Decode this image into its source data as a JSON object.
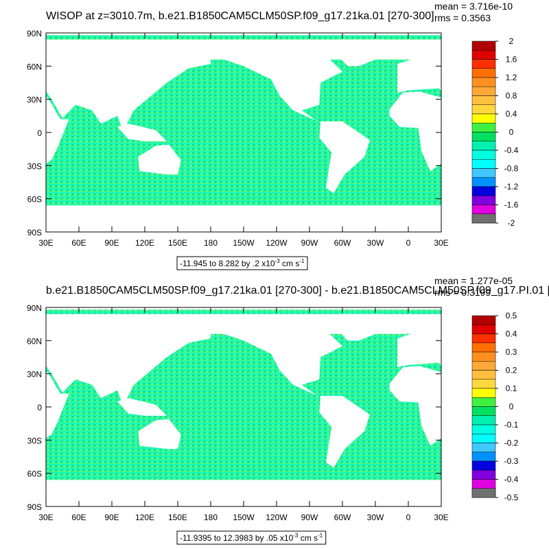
{
  "maps": [
    {
      "title": "WISOP at z=3010.7m, b.e21.B1850CAM5CLM50SP.f09_g17.21ka.01 [270-300]",
      "mean": "mean = 3.716e-10",
      "rms": "rms = 0.3563",
      "lat_ticks": [
        "90N",
        "60N",
        "30N",
        "0",
        "30S",
        "60S",
        "90S"
      ],
      "lon_ticks": [
        "30E",
        "60E",
        "90E",
        "120E",
        "150E",
        "180",
        "150W",
        "120W",
        "90W",
        "60W",
        "30W",
        "0",
        "30E"
      ],
      "info": {
        "text": "-11.945 to 8.282 by .2 x10",
        "exp": "-3",
        "unit": " cm s",
        "unit_exp": "-1"
      },
      "colorbar": {
        "levels": [
          2,
          1.6,
          1.2,
          0.8,
          0.4,
          0,
          -0.4,
          -0.8,
          -1.2,
          -1.6,
          -2
        ],
        "colors": [
          "#b00000",
          "#e00000",
          "#ff3000",
          "#ff7000",
          "#ff9020",
          "#ffa838",
          "#ffc040",
          "#ffd840",
          "#ffff00",
          "#40f040",
          "#00e060",
          "#00f0b0",
          "#00ffe0",
          "#00ffff",
          "#40c8ff",
          "#0090ff",
          "#0000e0",
          "#8000e0",
          "#e000e0",
          "#d8d8d8",
          "#707070"
        ]
      }
    },
    {
      "title": "b.e21.B1850CAM5CLM50SP.f09_g17.21ka.01 [270-300] - b.e21.B1850CAM5CLM50SP.f09_g17.PI.01 [",
      "mean": "mean = 1.277e-05",
      "rms": "rms = 0.3199",
      "lat_ticks": [
        "90N",
        "60N",
        "30N",
        "0",
        "30S",
        "60S",
        "90S"
      ],
      "lon_ticks": [
        "30E",
        "60E",
        "90E",
        "120E",
        "150E",
        "180",
        "150W",
        "120W",
        "90W",
        "60W",
        "30W",
        "0",
        "30E"
      ],
      "info": {
        "text": "-11.9395 to 12.3983 by .05 x10",
        "exp": "-3",
        "unit": " cm s",
        "unit_exp": "-1"
      },
      "colorbar": {
        "levels": [
          0.5,
          0.4,
          0.3,
          0.2,
          0.1,
          0,
          -0.1,
          -0.2,
          -0.3,
          -0.4,
          -0.5
        ],
        "colors": [
          "#b00000",
          "#e00000",
          "#ff3000",
          "#ff7000",
          "#ff9020",
          "#ffa838",
          "#ffc040",
          "#ffd840",
          "#ffff00",
          "#40f040",
          "#00e060",
          "#00f0b0",
          "#00ffe0",
          "#00ffff",
          "#40c8ff",
          "#0090ff",
          "#0000e0",
          "#8000e0",
          "#e000e0",
          "#d8d8d8",
          "#707070"
        ]
      }
    }
  ]
}
